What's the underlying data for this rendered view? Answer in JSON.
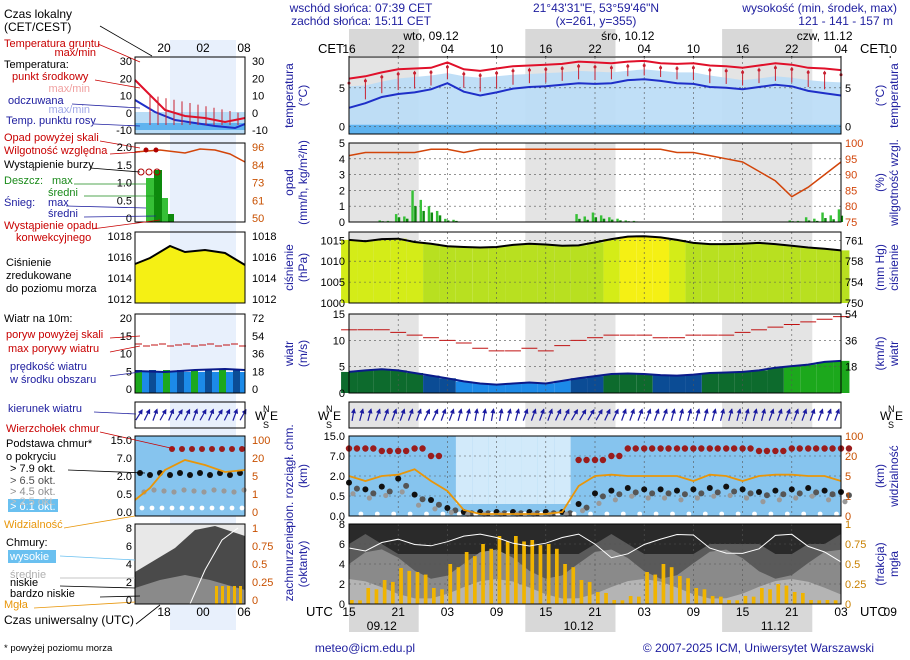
{
  "header": {
    "sunrise": "wschód słońca: 07:39 CET",
    "sunset": "zachód słońca: 15:11 CET",
    "coords": "21°43'31\"E, 53°59'46\"N",
    "grid": "(x=261,  y=355)",
    "elevation_label": "wysokość (min, środek, max)",
    "elevation_values": "121 - 141 - 157 m"
  },
  "top_days": [
    {
      "label": "wto, 09.12",
      "hour": 10
    },
    {
      "label": "śro, 10.12",
      "hour": 34
    },
    {
      "label": "czw, 11.12",
      "hour": 58
    }
  ],
  "bottom_days": [
    {
      "label": "09.12",
      "hour": 4
    },
    {
      "label": "10.12",
      "hour": 28
    },
    {
      "label": "11.12",
      "hour": 52
    }
  ],
  "cet_ticks": [
    "16",
    "22",
    "04",
    "10",
    "16",
    "22",
    "04",
    "10",
    "16",
    "22",
    "04",
    "10",
    "16"
  ],
  "utc_ticks": [
    "15",
    "21",
    "03",
    "09",
    "15",
    "21",
    "03",
    "09",
    "15",
    "21",
    "03",
    "09",
    "15"
  ],
  "cet_label": "CET",
  "utc_label": "UTC",
  "footer": {
    "note": "* powyżej poziomu morza",
    "email": "meteo@icm.edu.pl",
    "copyright": "© 2007-2025 ICM, Uniwersytet Warszawski"
  },
  "legend": {
    "local_time": "Czas lokalny",
    "local_time_sub": "(CET/CEST)",
    "local_ticks": [
      "20",
      "02",
      "08"
    ],
    "utc_time": "Czas uniwersalny (UTC)",
    "utc_ticks": [
      "18",
      "00",
      "06"
    ],
    "ground_temp": "Temperatura gruntu",
    "ground_temp_sub": "max/min",
    "temperature": "Temperatura:",
    "temp_mid": "punkt środkowy",
    "temp_maxmin": "max/min",
    "perceived": "odczuwana",
    "perceived_maxmin": "max/min",
    "dew_point": "Temp. punktu rosy",
    "precip_over": "Opad powyżej skali",
    "humidity": "Wilgotność względna",
    "storm": "Wystąpienie burzy",
    "rain": "Deszcz:",
    "snow": "Śnieg:",
    "max": "max",
    "mean": "średni",
    "precip_occurrence": "Wystąpienie opadu",
    "convective": "konwekcyjnego",
    "pressure_1": "Ciśnienie",
    "pressure_2": "zredukowane",
    "pressure_3": "do poziomu morza",
    "wind_10m": "Wiatr na 10m:",
    "gusts_over": "poryw powyżej skali",
    "max_gusts": "max porywy wiatru",
    "mean_wind_1": "prędkość wiatru",
    "mean_wind_2": "w środku obszaru",
    "wind_dir": "kierunek wiatru",
    "storm_cloud": "Wierzchołek chmur",
    "cloud_base_1": "Podstawa chmur*",
    "cloud_base_2": "o pokryciu",
    "octas": [
      "> 7.9 okt.",
      "> 6.5 okt.",
      "> 4.5 okt.",
      "> 2.5 okt.",
      "> 0.1 okt."
    ],
    "visibility": "Widzialność",
    "clouds": "Chmury:",
    "cloud_high": "wysokie",
    "cloud_mid": "średnie",
    "cloud_low": "niskie",
    "cloud_very_low": "bardzo niskie",
    "fog": "Mgła"
  },
  "panels": {
    "temperature": {
      "left": "temperatura",
      "left_unit": "(°C)",
      "right": "temperatura",
      "right_unit": "(°C)",
      "ticks": [
        0,
        5
      ]
    },
    "precip": {
      "left": "opad",
      "left_unit": "(mm/h, kg/m²/h)",
      "right": "wilgotność wzgl.",
      "right_unit": "(%)",
      "ticks": [
        0,
        1,
        2,
        3,
        4,
        5
      ],
      "rh_ticks": [
        75,
        80,
        85,
        90,
        95,
        100
      ]
    },
    "pressure": {
      "left": "ciśnienie",
      "left_unit": "(hPa)",
      "right": "ciśnienie",
      "right_unit": "(mm Hg)",
      "ticks": [
        1000,
        1005,
        1010,
        1015
      ],
      "mmhg_ticks": [
        "750",
        "754",
        "758",
        "761"
      ]
    },
    "wind": {
      "left": "wiatr",
      "left_unit": "(m/s)",
      "right": "wiatr",
      "right_unit": "(km/h)",
      "ticks": [
        0,
        5,
        10,
        15
      ],
      "kmh_ticks": [
        "18",
        "36",
        "54"
      ]
    },
    "clouds": {
      "left": "pion. rozciągł. chm.",
      "left_unit": "(km)",
      "right": "widzialność",
      "right_unit": "(km)",
      "ticks": [
        "0.0",
        "0.5",
        "2.0",
        "7.0",
        "15.0"
      ],
      "vis_ticks": [
        "0",
        "1",
        "5",
        "20",
        "100"
      ]
    },
    "cloudcover": {
      "left": "zachmurzenie",
      "left_unit": "(oktanty)",
      "right": "mgła",
      "right_unit": "(frakcja)",
      "ticks": [
        0,
        2,
        4,
        6,
        8
      ],
      "fog_ticks": [
        "0",
        "0.25",
        "0.5",
        "0.75",
        "1"
      ]
    }
  },
  "colors": {
    "temp": "#e0102a",
    "perceived": "#1e2fc8",
    "dew": "#7fb8e8",
    "rh": "#d2450a",
    "rain": "#1da11d",
    "pressure_fill": "#c8ec20",
    "wind_fill": "#1e6fd0",
    "gust": "#c01010",
    "visibility": "#e8960a",
    "fog": "#f0b400",
    "night": "#dcdcdc",
    "frame_blue": "#2020a0",
    "accent_red": "#c80000"
  },
  "chart_data": {
    "type": "meteogram",
    "x_unit": "hours from 15 UTC 08.12",
    "hours": [
      0,
      2,
      4,
      6,
      8,
      10,
      12,
      14,
      16,
      18,
      20,
      22,
      24,
      26,
      28,
      30,
      32,
      34,
      36,
      38,
      40,
      42,
      44,
      46,
      48,
      50,
      52,
      54,
      56,
      58,
      60
    ],
    "temperature": [
      6.2,
      6.5,
      7.0,
      7.4,
      7.5,
      7.6,
      8.3,
      7.4,
      7.2,
      7.5,
      7.8,
      7.9,
      8.0,
      8.1,
      8.4,
      8.3,
      8.2,
      8.4,
      8.5,
      8.2,
      8.1,
      8.2,
      7.9,
      7.8,
      7.6,
      7.9,
      8.2,
      8.0,
      7.6,
      7.5,
      7.3
    ],
    "perceived": [
      2.4,
      3.0,
      3.8,
      4.2,
      4.4,
      4.8,
      5.6,
      4.5,
      4.0,
      4.4,
      4.9,
      5.1,
      5.2,
      5.4,
      5.6,
      5.5,
      5.6,
      6.0,
      6.1,
      5.9,
      5.6,
      5.5,
      5.1,
      5.0,
      4.8,
      5.1,
      5.4,
      5.2,
      4.6,
      4.3,
      4.0
    ],
    "dew_point": [
      5.2,
      5.3,
      5.8,
      6.2,
      6.4,
      6.6,
      6.9,
      6.5,
      6.3,
      6.5,
      6.7,
      6.8,
      6.9,
      7.0,
      7.2,
      7.1,
      7.0,
      7.2,
      7.4,
      7.2,
      7.0,
      7.0,
      6.6,
      6.3,
      6.0,
      6.2,
      6.5,
      6.3,
      6.0,
      5.8,
      5.7
    ],
    "humidity": [
      96,
      97,
      97,
      97,
      97,
      98,
      98,
      97,
      98,
      98,
      98,
      98,
      98,
      98,
      98,
      98,
      98,
      98,
      98,
      98,
      97,
      97,
      96,
      95,
      94,
      91,
      88,
      83,
      86,
      90,
      94
    ],
    "rain_max": [
      0,
      0,
      0.1,
      0.5,
      2.0,
      1.0,
      0.2,
      0,
      0,
      0,
      0,
      0,
      0,
      0,
      0.5,
      0.6,
      0.3,
      0.1,
      0,
      0,
      0,
      0,
      0,
      0,
      0,
      0,
      0,
      0.1,
      0.3,
      0.6,
      0.8
    ],
    "rain_mean": [
      0,
      0,
      0.05,
      0.3,
      1.0,
      0.6,
      0.1,
      0,
      0,
      0,
      0,
      0,
      0,
      0,
      0.2,
      0.3,
      0.15,
      0.05,
      0,
      0,
      0,
      0,
      0,
      0,
      0,
      0,
      0,
      0.05,
      0.1,
      0.25,
      0.4
    ],
    "pressure": [
      1015.1,
      1014.8,
      1015.3,
      1015.4,
      1014.6,
      1014.2,
      1013.6,
      1013.4,
      1013.3,
      1013.4,
      1013.9,
      1014.2,
      1014.0,
      1013.7,
      1013.8,
      1014.5,
      1015.3,
      1015.9,
      1016.0,
      1015.7,
      1015.1,
      1014.4,
      1014.1,
      1014.1,
      1014.2,
      1014.4,
      1014.1,
      1013.7,
      1013.3,
      1013.0,
      1012.6
    ],
    "wind_speed": [
      4.0,
      4.3,
      4.5,
      4.3,
      3.8,
      3.3,
      2.8,
      2.2,
      1.8,
      1.6,
      1.8,
      2.0,
      1.8,
      2.3,
      2.8,
      3.2,
      3.6,
      3.7,
      3.6,
      3.4,
      3.3,
      3.5,
      3.8,
      3.9,
      4.0,
      4.3,
      4.8,
      5.1,
      5.4,
      5.9,
      6.1
    ],
    "wind_gust": [
      12.0,
      12.0,
      12.0,
      11.5,
      11.0,
      10.5,
      10.0,
      9.5,
      8.5,
      8.0,
      8.0,
      8.5,
      8.0,
      9.0,
      10.0,
      10.5,
      11.0,
      11.0,
      11.0,
      10.5,
      10.5,
      11.0,
      11.0,
      11.0,
      11.5,
      12.0,
      12.5,
      13.0,
      13.5,
      14.0,
      14.5
    ],
    "wind_direction_deg": [
      190,
      195,
      200,
      200,
      200,
      205,
      200,
      195,
      190,
      190,
      195,
      200,
      200,
      205,
      210,
      210,
      205,
      200,
      200,
      200,
      195,
      195,
      195,
      195,
      195,
      195,
      200,
      200,
      200,
      200,
      200
    ],
    "cloud_top_km": [
      10,
      10,
      9,
      9,
      10,
      7,
      2,
      0.1,
      0.1,
      0.1,
      0.1,
      0.1,
      0.1,
      0.1,
      6,
      6,
      7,
      10,
      10,
      10,
      10,
      10,
      10,
      10,
      10,
      9,
      9,
      10,
      10,
      10,
      10
    ],
    "cloud_base_km": [
      1.5,
      1.0,
      1.2,
      1.8,
      0.6,
      0.4,
      0.2,
      0.1,
      0.1,
      0.1,
      0.1,
      0.1,
      0.1,
      0.1,
      0.3,
      0.7,
      0.9,
      1.1,
      1.0,
      1.0,
      0.9,
      1.0,
      1.1,
      1.2,
      1.0,
      0.8,
      0.9,
      1.0,
      1.1,
      0.9,
      0.8
    ],
    "visibility_km": [
      5,
      4,
      5,
      6,
      10,
      4,
      2,
      0.3,
      0.1,
      0.1,
      0.1,
      0.1,
      0.1,
      0.2,
      3,
      5,
      6,
      5,
      5,
      5,
      5,
      4,
      6,
      5,
      4,
      5,
      6,
      6,
      5,
      5,
      4
    ],
    "cloud_cover_octas": [
      7,
      6,
      7,
      8,
      8,
      8,
      8,
      8,
      8,
      8,
      8,
      8,
      8,
      8,
      8,
      7,
      6,
      7,
      8,
      8,
      8,
      8,
      7,
      7,
      7,
      7,
      8,
      8,
      7,
      7,
      6
    ],
    "fog_fraction": [
      0.05,
      0.2,
      0.3,
      0.45,
      0.4,
      0.2,
      0.5,
      0.65,
      0.75,
      0.85,
      0.85,
      0.8,
      0.75,
      0.5,
      0.3,
      0.15,
      0.05,
      0.1,
      0.4,
      0.5,
      0.35,
      0.2,
      0.1,
      0.05,
      0.1,
      0.2,
      0.25,
      0.15,
      0.05,
      0.05,
      0.1
    ]
  }
}
